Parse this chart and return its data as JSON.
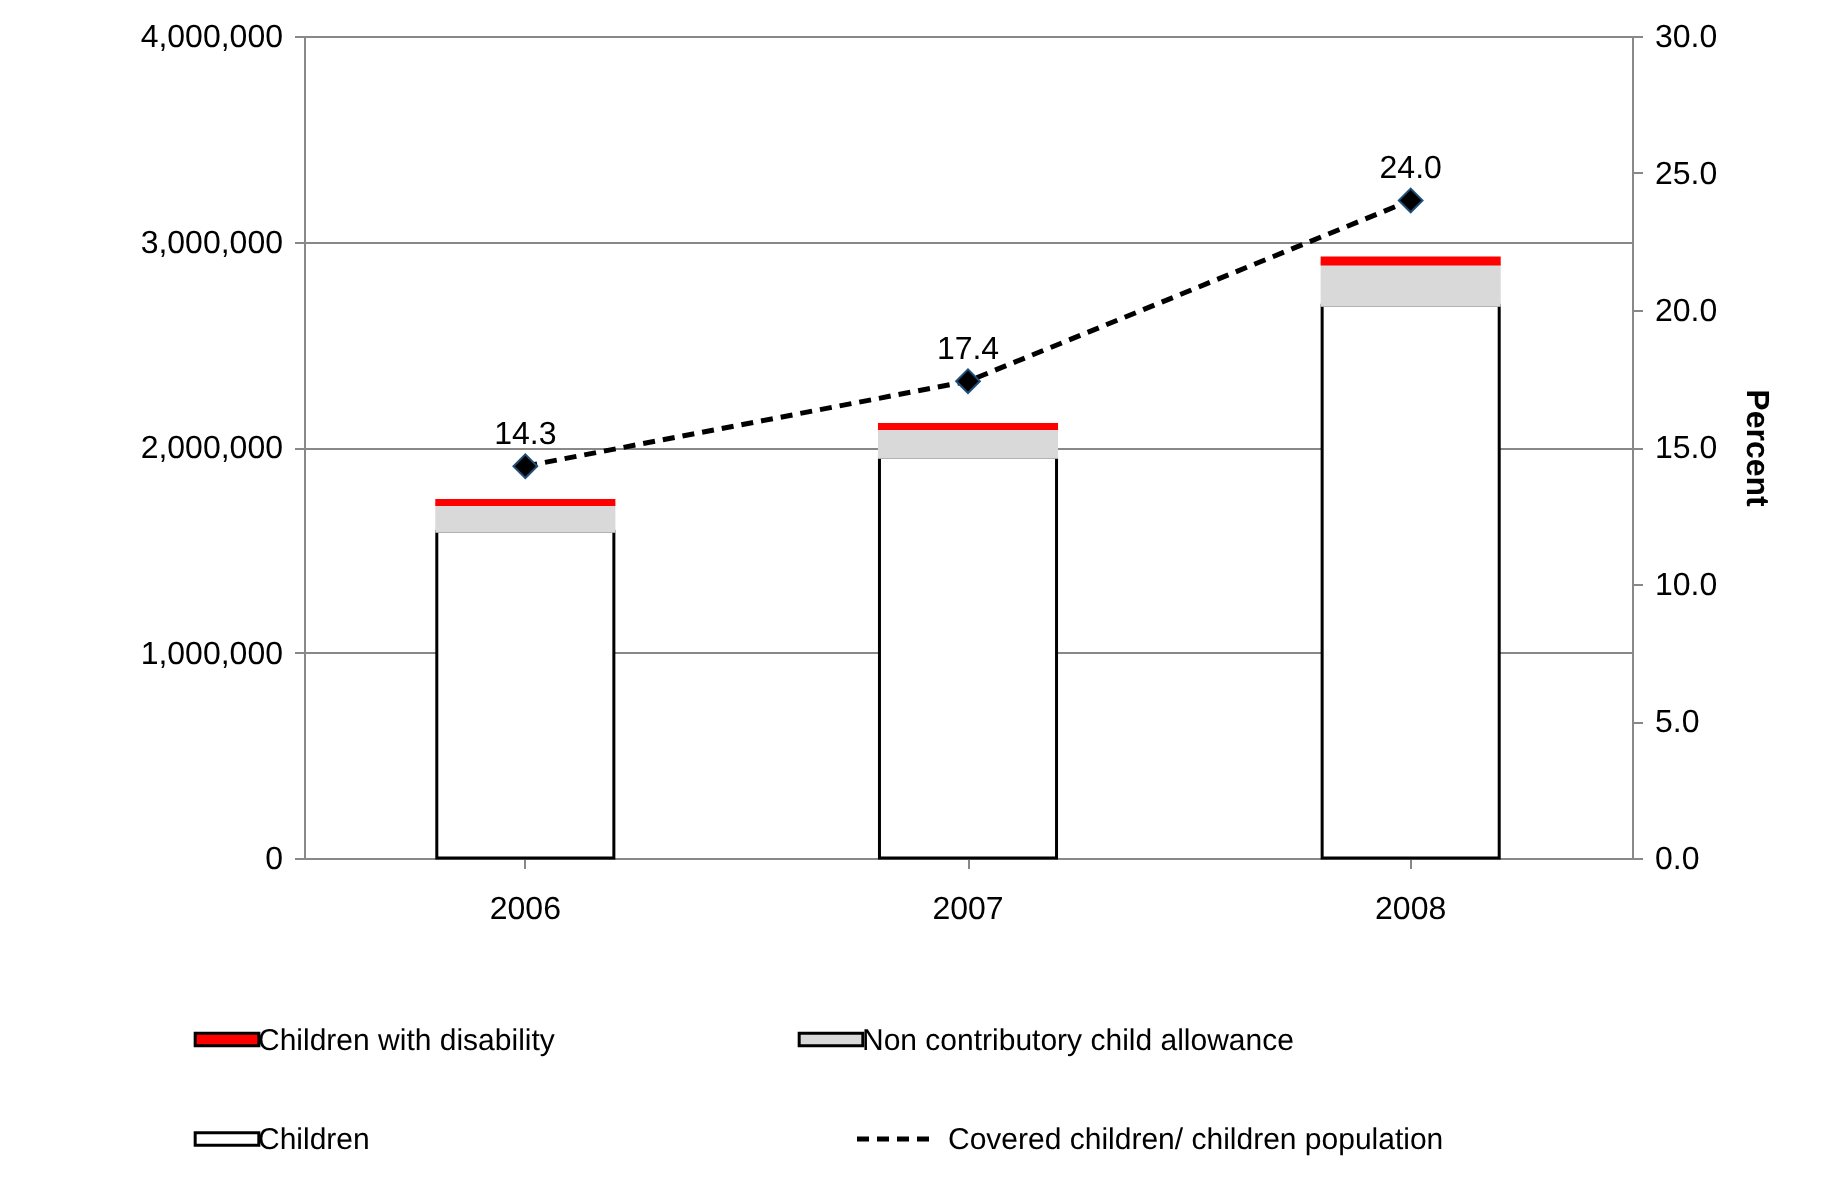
{
  "chart_data": {
    "type": "bar",
    "stacked": true,
    "categories": [
      "2006",
      "2007",
      "2008"
    ],
    "series": [
      {
        "name": "Children",
        "color": "#ffffff",
        "values": [
          1590000,
          1950000,
          2690000
        ]
      },
      {
        "name": "Non contributory child allowance",
        "color": "#d9d9d9",
        "values": [
          130000,
          140000,
          200000
        ]
      },
      {
        "name": "Children with disability",
        "color": "#ff0000",
        "values": [
          20000,
          20000,
          30000
        ]
      },
      {
        "name": "Covered children/ children population",
        "type": "line",
        "axis": "y2",
        "color": "#000000",
        "values": [
          14.3,
          17.4,
          24.0
        ],
        "value_labels": [
          "14.3",
          "17.4",
          "24.0"
        ],
        "marker": "diamond",
        "line_style": "dashed"
      }
    ],
    "ylim": [
      0,
      4000000
    ],
    "yticks": [
      {
        "value": 0,
        "label": "0"
      },
      {
        "value": 1000000,
        "label": "1,000,000"
      },
      {
        "value": 2000000,
        "label": "2,000,000"
      },
      {
        "value": 3000000,
        "label": "3,000,000"
      },
      {
        "value": 4000000,
        "label": "4,000,000"
      }
    ],
    "y2lim": [
      0,
      30
    ],
    "y2ticks": [
      {
        "value": 0,
        "label": "0.0"
      },
      {
        "value": 5,
        "label": "5.0"
      },
      {
        "value": 10,
        "label": "10.0"
      },
      {
        "value": 15,
        "label": "15.0"
      },
      {
        "value": 20,
        "label": "20.0"
      },
      {
        "value": 25,
        "label": "25.0"
      },
      {
        "value": 30,
        "label": "30.0"
      }
    ],
    "y2label": "Percent",
    "grid": "y",
    "legend": "bottom"
  }
}
